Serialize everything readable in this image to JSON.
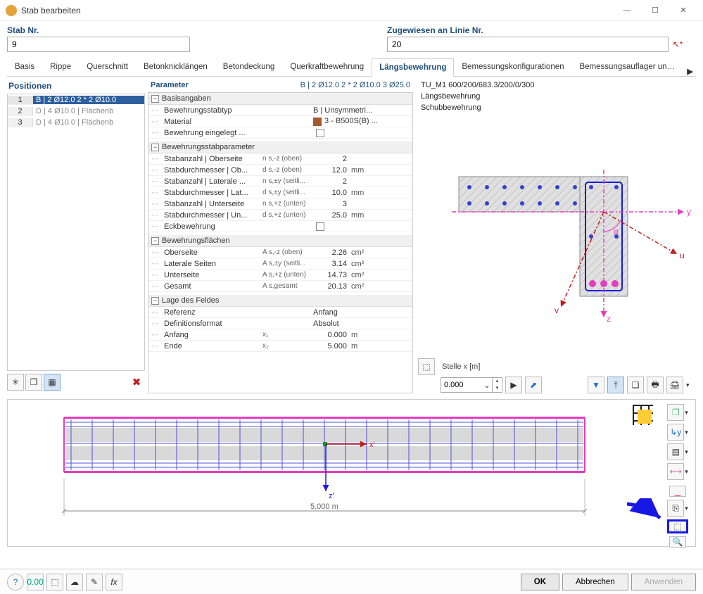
{
  "window": {
    "title": "Stab bearbeiten"
  },
  "header": {
    "stab_label": "Stab Nr.",
    "stab_value": "9",
    "line_label": "Zugewiesen an Linie Nr.",
    "line_value": "20"
  },
  "tabs": [
    "Basis",
    "Rippe",
    "Querschnitt",
    "Betonknicklängen",
    "Betondeckung",
    "Querkraftbewehrung",
    "Längsbewehrung",
    "Bemessungskonfigurationen",
    "Bemessungsauflager und Du"
  ],
  "active_tab": 6,
  "positions": {
    "title": "Positionen",
    "rows": [
      {
        "n": "1",
        "txt": "B | 2 Ø12.0 2 * 2 Ø10.0",
        "sel": true
      },
      {
        "n": "2",
        "txt": "D | 4 Ø10.0 | Flächenb",
        "sel": false
      },
      {
        "n": "3",
        "txt": "D | 4 Ø10.0 | Flächenb",
        "sel": false
      }
    ]
  },
  "params": {
    "title": "Parameter",
    "desc": "B | 2 Ø12.0 2 * 2 Ø10.0 3 Ø25.0",
    "groups": [
      {
        "name": "Basisangaben",
        "rows": [
          {
            "name": "Bewehrungsstabtyp",
            "val": "B | Unsymmetri...",
            "kind": "text"
          },
          {
            "name": "Material",
            "val": "3 - B500S(B) ...",
            "kind": "color"
          },
          {
            "name": "Bewehrung eingelegt ...",
            "kind": "check"
          }
        ]
      },
      {
        "name": "Bewehrungsstabparameter",
        "rows": [
          {
            "name": "Stabanzahl | Oberseite",
            "sym": "n s,-z (oben)",
            "val": "2",
            "unit": ""
          },
          {
            "name": "Stabdurchmesser | Ob...",
            "sym": "d s,-z (oben)",
            "val": "12.0",
            "unit": "mm"
          },
          {
            "name": "Stabanzahl | Laterale ...",
            "sym": "n s,±y (seitli...",
            "val": "2",
            "unit": ""
          },
          {
            "name": "Stabdurchmesser | Lat...",
            "sym": "d s,±y (seitli...",
            "val": "10.0",
            "unit": "mm"
          },
          {
            "name": "Stabanzahl | Unterseite",
            "sym": "n s,+z (unten)",
            "val": "3",
            "unit": ""
          },
          {
            "name": "Stabdurchmesser | Un...",
            "sym": "d s,+z (unten)",
            "val": "25.0",
            "unit": "mm"
          },
          {
            "name": "Eckbewehrung",
            "kind": "check"
          }
        ]
      },
      {
        "name": "Bewehrungsflächen",
        "rows": [
          {
            "name": "Oberseite",
            "sym": "A s,-z (oben)",
            "val": "2.26",
            "unit": "cm²"
          },
          {
            "name": "Laterale Seiten",
            "sym": "A s,±y (seitli...",
            "val": "3.14",
            "unit": "cm²"
          },
          {
            "name": "Unterseite",
            "sym": "A s,+z (unten)",
            "val": "14.73",
            "unit": "cm²"
          },
          {
            "name": "Gesamt",
            "sym": "A s,gesamt",
            "val": "20.13",
            "unit": "cm²"
          }
        ]
      },
      {
        "name": "Lage des Feldes",
        "rows": [
          {
            "name": "Referenz",
            "val": "Anfang",
            "kind": "textwide"
          },
          {
            "name": "Definitionsformat",
            "val": "Absolut",
            "kind": "textwide"
          },
          {
            "name": "Anfang",
            "sym": "x₁",
            "val": "0.000",
            "unit": "m"
          },
          {
            "name": "Ende",
            "sym": "x₂",
            "val": "5.000",
            "unit": "m"
          }
        ]
      }
    ]
  },
  "viewer": {
    "lines": [
      "TU_M1 600/200/683.3/200/0/300",
      "Längsbewehrung",
      "Schubbewehrung"
    ],
    "stelle_label": "Stelle x [m]",
    "stelle_value": "0.000",
    "axis_labels": {
      "y": "y",
      "u": "u",
      "v": "v",
      "z": "z",
      "alpha": "α"
    },
    "colors": {
      "section_fill": "#e0e0e0",
      "hatch": "#aaaaaa",
      "rebar_line": "#1818e6",
      "dot": "#3040d0",
      "axis": "#e63cc0",
      "u_axis": "#c61a1a"
    }
  },
  "beam": {
    "length_label": "5.000 m",
    "colors": {
      "outline": "#e63cc0",
      "inner": "#5050e0",
      "fill": "#d9d9d9",
      "x_axis": "#c61a1a",
      "z_axis": "#1818e6",
      "origin": "#00a000"
    }
  },
  "footer": {
    "ok": "OK",
    "cancel": "Abbrechen",
    "apply": "Anwenden"
  }
}
